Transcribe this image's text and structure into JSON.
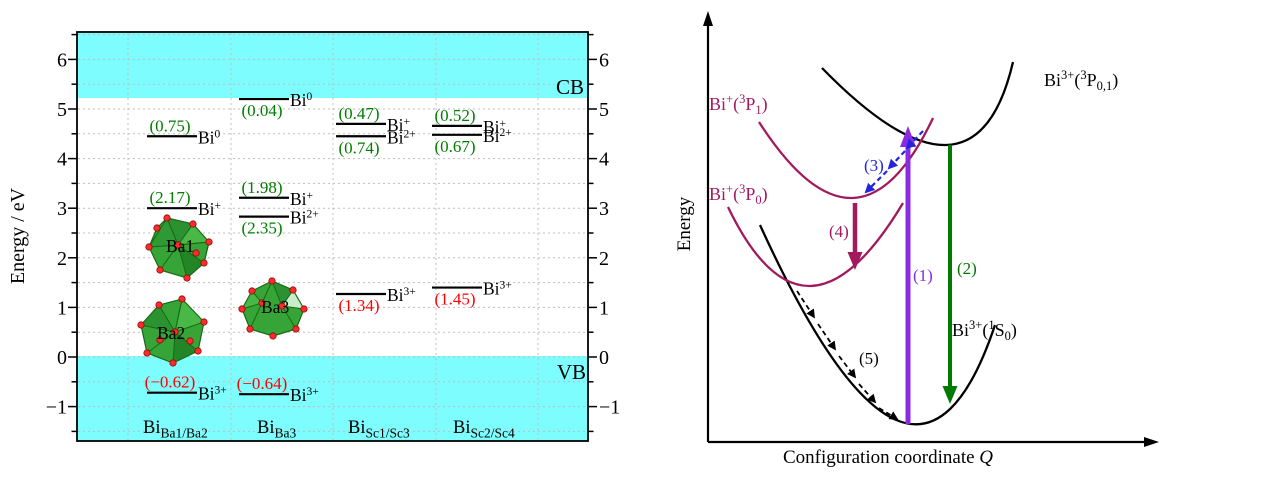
{
  "figure": {
    "background": "#FFFFFF",
    "description_left": "Calculated thermodynamic transition levels of Bi dopants on Ba and Sc sites within the band gap",
    "description_right": "Configuration coordinate diagram for Bi3+/Bi+ excitation and relaxation"
  },
  "chart_data": [
    {
      "type": "energy_levels",
      "panel": "left",
      "ylabel": "Energy / eV",
      "yticks": [
        6,
        5,
        4,
        3,
        2,
        1,
        0,
        -1
      ],
      "ylim": [
        -1.69,
        6.55
      ],
      "grid": "dotted gray, every 0.5 eV; 5 vertical dotted column dividers",
      "band_color": "#7DFDFD",
      "bands": [
        {
          "label": "CB",
          "range_eV": [
            5.22,
            6.55
          ]
        },
        {
          "label": "VB",
          "range_eV": [
            -1.69,
            0.02
          ]
        }
      ],
      "value_colors": {
        "relative_to_CB": "#007D00",
        "relative_to_VB": "#FF0000"
      },
      "columns": [
        {
          "label_base": "Bi",
          "label_sub": "Ba1/Ba2",
          "levels": [
            {
              "species_base": "Bi",
              "species_charge": "0",
              "value": "(0.75)",
              "value_color": "#007D00",
              "value_side": "above",
              "energy_pos_eV": 4.45
            },
            {
              "species_base": "Bi",
              "species_charge": "+",
              "value": "(2.17)",
              "value_color": "#007D00",
              "value_side": "above",
              "energy_pos_eV": 3.0
            },
            {
              "species_base": "Bi",
              "species_charge": "3+",
              "value": "(−0.62)",
              "value_color": "#FF0000",
              "value_side": "above",
              "energy_pos_eV": -0.72
            }
          ]
        },
        {
          "label_base": "Bi",
          "label_sub": "Ba3",
          "levels": [
            {
              "species_base": "Bi",
              "species_charge": "0",
              "value": "(0.04)",
              "value_color": "#007D00",
              "value_side": "below",
              "energy_pos_eV": 5.2
            },
            {
              "species_base": "Bi",
              "species_charge": "+",
              "value": "(1.98)",
              "value_color": "#007D00",
              "value_side": "above",
              "energy_pos_eV": 3.21
            },
            {
              "species_base": "Bi",
              "species_charge": "2+",
              "value": "(2.35)",
              "value_color": "#007D00",
              "value_side": "below",
              "energy_pos_eV": 2.83
            },
            {
              "species_base": "Bi",
              "species_charge": "3+",
              "value": "(−0.64)",
              "value_color": "#FF0000",
              "value_side": "above",
              "energy_pos_eV": -0.75
            }
          ]
        },
        {
          "label_base": "Bi",
          "label_sub": "Sc1/Sc3",
          "levels": [
            {
              "species_base": "Bi",
              "species_charge": "+",
              "value": "(0.47)",
              "value_color": "#007D00",
              "value_side": "above",
              "energy_pos_eV": 4.7
            },
            {
              "species_base": "Bi",
              "species_charge": "2+",
              "value": "(0.74)",
              "value_color": "#007D00",
              "value_side": "below",
              "energy_pos_eV": 4.45
            },
            {
              "species_base": "Bi",
              "species_charge": "3+",
              "value": "(1.34)",
              "value_color": "#FF0000",
              "value_side": "below",
              "energy_pos_eV": 1.27
            }
          ]
        },
        {
          "label_base": "Bi",
          "label_sub": "Sc2/Sc4",
          "levels": [
            {
              "species_base": "Bi",
              "species_charge": "+",
              "value": "(0.52)",
              "value_color": "#007D00",
              "value_side": "above",
              "energy_pos_eV": 4.66
            },
            {
              "species_base": "Bi",
              "species_charge": "2+",
              "value": "(0.67)",
              "value_color": "#007D00",
              "value_side": "below",
              "energy_pos_eV": 4.48
            },
            {
              "species_base": "Bi",
              "species_charge": "3+",
              "value": "(1.45)",
              "value_color": "#FF0000",
              "value_side": "below",
              "energy_pos_eV": 1.4
            }
          ]
        }
      ],
      "polyhedra": [
        {
          "label": "Ba1",
          "fill": "#37A437",
          "vertex_dot_color": "#FF2A2A"
        },
        {
          "label": "Ba2",
          "fill": "#37A437",
          "vertex_dot_color": "#FF2A2A"
        },
        {
          "label": "Ba3",
          "fill": "#37A437",
          "vertex_dot_color": "#FF2A2A"
        }
      ]
    },
    {
      "type": "configuration_coordinate_diagram",
      "panel": "right",
      "ylabel": "Energy",
      "xlabel_main": "Configuration coordinate ",
      "xlabel_symbol": "Q",
      "curve_colors": {
        "Bi3+_states": "#000000",
        "Bi+_states": "#A21A5E"
      },
      "states": [
        {
          "base": "Bi",
          "charge": "+",
          "open": "(",
          "mult": "3",
          "letter": "P",
          "sub": "1",
          "close": ")",
          "color": "#A21A5E"
        },
        {
          "base": "Bi",
          "charge": "+",
          "open": "(",
          "mult": "3",
          "letter": "P",
          "sub": "0",
          "close": ")",
          "color": "#A21A5E"
        },
        {
          "base": "Bi",
          "charge": "3+",
          "open": "(",
          "mult": "3",
          "letter": "P",
          "sub": "0,1",
          "close": ")",
          "color": "#000000"
        },
        {
          "base": "Bi",
          "charge": "3+",
          "open": "(",
          "mult": "1",
          "letter": "S",
          "sub": "0",
          "close": ")",
          "color": "#000000"
        }
      ],
      "transitions": [
        {
          "label": "(1)",
          "color": "#8A2BE2",
          "style": "thick solid arrow up"
        },
        {
          "label": "(2)",
          "color": "#007B00",
          "style": "solid arrow down"
        },
        {
          "label": "(3)",
          "color": "#2424E0",
          "style": "dashed cascade arrows down-left"
        },
        {
          "label": "(4)",
          "color": "#A21A5E",
          "style": "solid arrow down"
        },
        {
          "label": "(5)",
          "color": "#000000",
          "style": "dashed cascade arrows down curve"
        }
      ]
    }
  ]
}
